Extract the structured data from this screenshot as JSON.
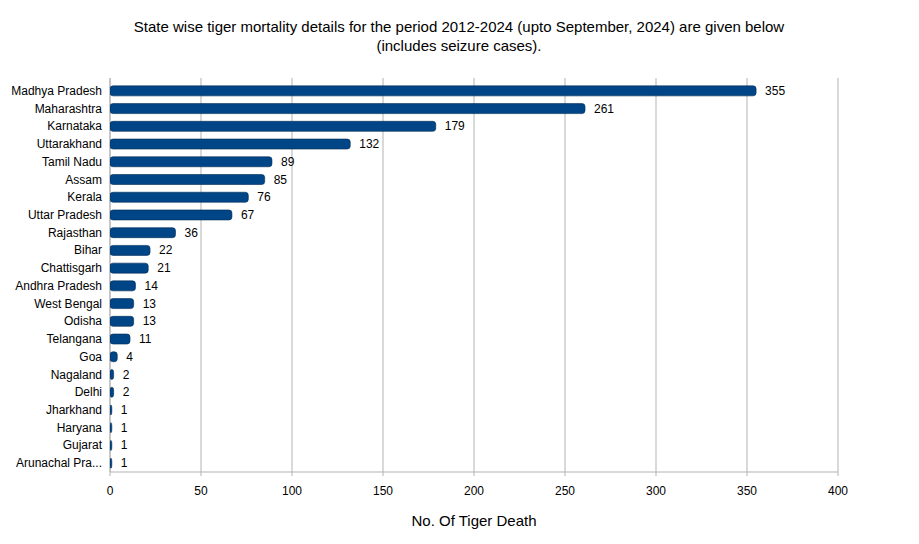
{
  "chart_data": {
    "type": "bar",
    "orientation": "horizontal",
    "title": "State wise tiger mortality details for the period 2012-2024 (upto September, 2024) are given below",
    "subtitle": "(includes seizure cases).",
    "xlabel": "No. Of Tiger Death",
    "categories": [
      "Madhya Pradesh",
      "Maharashtra",
      "Karnataka",
      "Uttarakhand",
      "Tamil Nadu",
      "Assam",
      "Kerala",
      "Uttar Pradesh",
      "Rajasthan",
      "Bihar",
      "Chattisgarh",
      "Andhra Pradesh",
      "West Bengal",
      "Odisha",
      "Telangana",
      "Goa",
      "Nagaland",
      "Delhi",
      "Jharkhand",
      "Haryana",
      "Gujarat",
      "Arunachal Pra..."
    ],
    "values": [
      355,
      261,
      179,
      132,
      89,
      85,
      76,
      67,
      36,
      22,
      21,
      14,
      13,
      13,
      11,
      4,
      2,
      2,
      1,
      1,
      1,
      1
    ],
    "color": "#004586",
    "xlim": [
      0,
      400
    ],
    "xticks": [
      0,
      50,
      100,
      150,
      200,
      250,
      300,
      350,
      400
    ],
    "grid": true,
    "data_labels": true
  }
}
